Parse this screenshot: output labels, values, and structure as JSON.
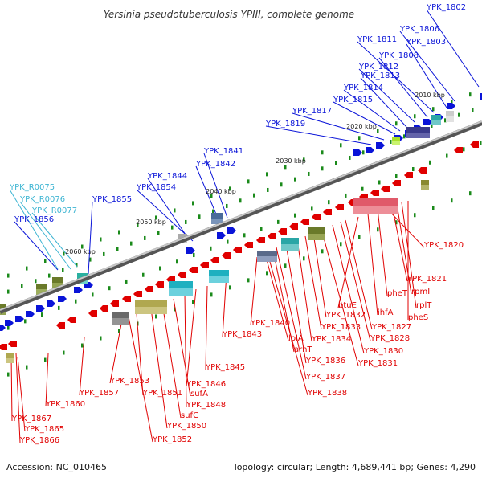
{
  "title": "Yersinia pseudotuberculosis YPIII, complete genome",
  "footer": {
    "accession": "Accession: NC_010465",
    "topology": "Topology: circular; Length: 4,689,441 bp; Genes: 4,290"
  },
  "colors": {
    "forward": "#0a14d8",
    "reverse": "#e00000",
    "rna": "#3cb4d2",
    "backbone": "#7a7a7a",
    "tick": "#1a8a1a"
  },
  "scale_ticks": [
    {
      "label": "2010 kbp",
      "kb": 2010
    },
    {
      "label": "2020 kbp",
      "kb": 2020
    },
    {
      "label": "2030 kbp",
      "kb": 2030
    },
    {
      "label": "2040 kbp",
      "kb": 2040
    },
    {
      "label": "2050 kbp",
      "kb": 2050
    },
    {
      "label": "2060 kbp",
      "kb": 2060
    }
  ],
  "forward_labels": [
    "YPK_1802",
    "YPK_1806",
    "YPK_1803",
    "YPK_1811",
    "YPK_1808",
    "YPK_1812",
    "YPK_1813",
    "YPK_1814",
    "YPK_1815",
    "YPK_1817",
    "YPK_1819",
    "YPK_1841",
    "YPK_1842",
    "YPK_1844",
    "YPK_1854",
    "YPK_1855",
    "YPK_1856"
  ],
  "rna_labels": [
    "YPK_R0075",
    "YPK_R0076",
    "YPK_R0077"
  ],
  "reverse_labels": [
    "YPK_1820",
    "YPK_1821",
    "rpmI",
    "rplT",
    "pheS",
    "pheT",
    "ihfA",
    "btuE",
    "YPK_1827",
    "YPK_1828",
    "YPK_1830",
    "YPK_1831",
    "YPK_1832",
    "YPK_1833",
    "YPK_1834",
    "YPK_1836",
    "YPK_1837",
    "YPK_1838",
    "lplA",
    "arnT",
    "YPK_1840",
    "YPK_1843",
    "YPK_1845",
    "YPK_1846",
    "YPK_1848",
    "sufA",
    "sufC",
    "YPK_1850",
    "YPK_1851",
    "YPK_1852",
    "YPK_1853",
    "YPK_1857",
    "YPK_1860",
    "YPK_1865",
    "YPK_1866",
    "YPK_1867"
  ]
}
